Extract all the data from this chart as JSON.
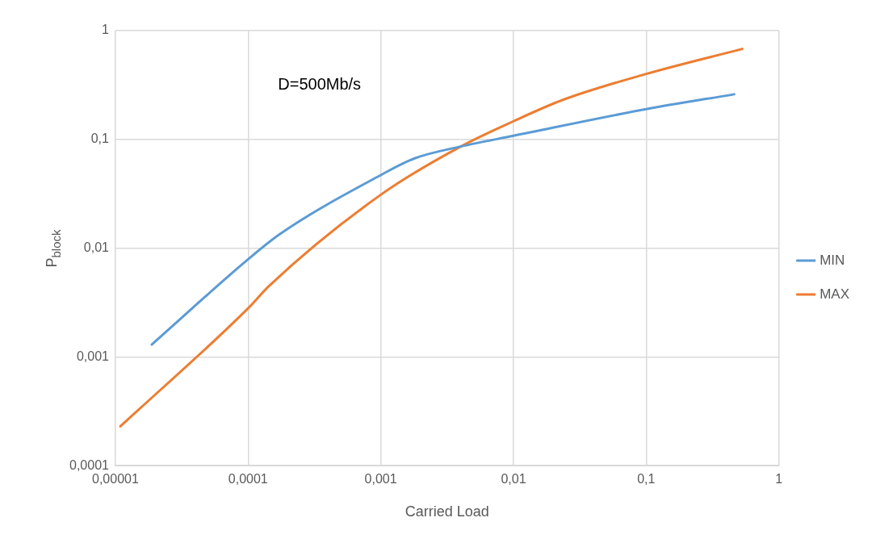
{
  "chart_data": {
    "type": "line",
    "xlabel": "Carried Load",
    "ylabel": "P$_{block}$",
    "annotations": [
      "D=500Mb/s"
    ],
    "log": "xy",
    "grid": true,
    "legend": "right",
    "marker": "none",
    "line_style": "solid",
    "xlim": [
      1e-05,
      1
    ],
    "ylim": [
      0.0001,
      1
    ],
    "xticks": [
      {
        "value": 1e-05,
        "label": "0,00001"
      },
      {
        "value": 0.0001,
        "label": "0,0001"
      },
      {
        "value": 0.001,
        "label": "0,001"
      },
      {
        "value": 0.01,
        "label": "0,01"
      },
      {
        "value": 0.1,
        "label": "0,1"
      },
      1
    ],
    "yticks": [
      {
        "value": 0.0001,
        "label": "0,0001"
      },
      {
        "value": 0.001,
        "label": "0,001"
      },
      {
        "value": 0.01,
        "label": "0,01"
      },
      {
        "value": 0.1,
        "label": "0,1"
      },
      1
    ],
    "series": [
      {
        "name": "MIN",
        "color": "#5b9bd5",
        "x": [
          1.88e-05,
          0.0001,
          0.000174,
          0.001,
          0.0018,
          0.004,
          0.01,
          0.1,
          0.46
        ],
        "values": [
          0.0013,
          0.0079,
          0.0135,
          0.047,
          0.067,
          0.086,
          0.108,
          0.19,
          0.26
        ]
      },
      {
        "name": "MAX",
        "color": "#ed7d31",
        "x": [
          1.09e-05,
          0.0001,
          0.000144,
          0.001,
          0.004,
          0.01,
          0.024,
          0.1,
          0.53
        ],
        "values": [
          0.00023,
          0.0028,
          0.0045,
          0.031,
          0.086,
          0.147,
          0.233,
          0.4,
          0.68
        ]
      }
    ]
  }
}
